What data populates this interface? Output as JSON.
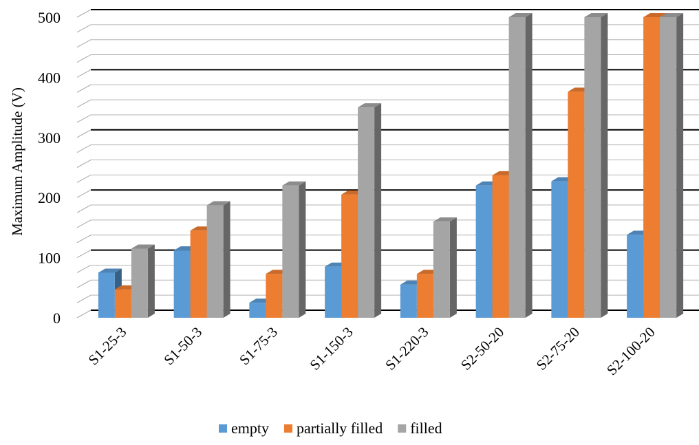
{
  "chart_data": {
    "type": "bar",
    "categories": [
      "S1-25-3",
      "S1-50-3",
      "S1-75-3",
      "S1-150-3",
      "S1-220-3",
      "S2-50-20",
      "S2-75-20",
      "S2-100-20"
    ],
    "series": [
      {
        "name": "empty",
        "values": [
          75,
          112,
          25,
          85,
          55,
          220,
          227,
          138
        ]
      },
      {
        "name": "partially filled",
        "values": [
          47,
          145,
          73,
          205,
          73,
          237,
          376,
          500
        ]
      },
      {
        "name": "filled",
        "values": [
          115,
          187,
          220,
          350,
          160,
          500,
          500,
          500
        ]
      }
    ],
    "ylabel": "Maximum  Amplitude  (V)",
    "xlabel": "",
    "ylim": [
      0,
      500
    ],
    "yticks": [
      0,
      100,
      200,
      300,
      400,
      500
    ],
    "grid": true,
    "legend": "bottom",
    "colors": {
      "empty": "#5b9bd5",
      "partially filled": "#ed7d31",
      "filled": "#a5a5a5"
    }
  }
}
